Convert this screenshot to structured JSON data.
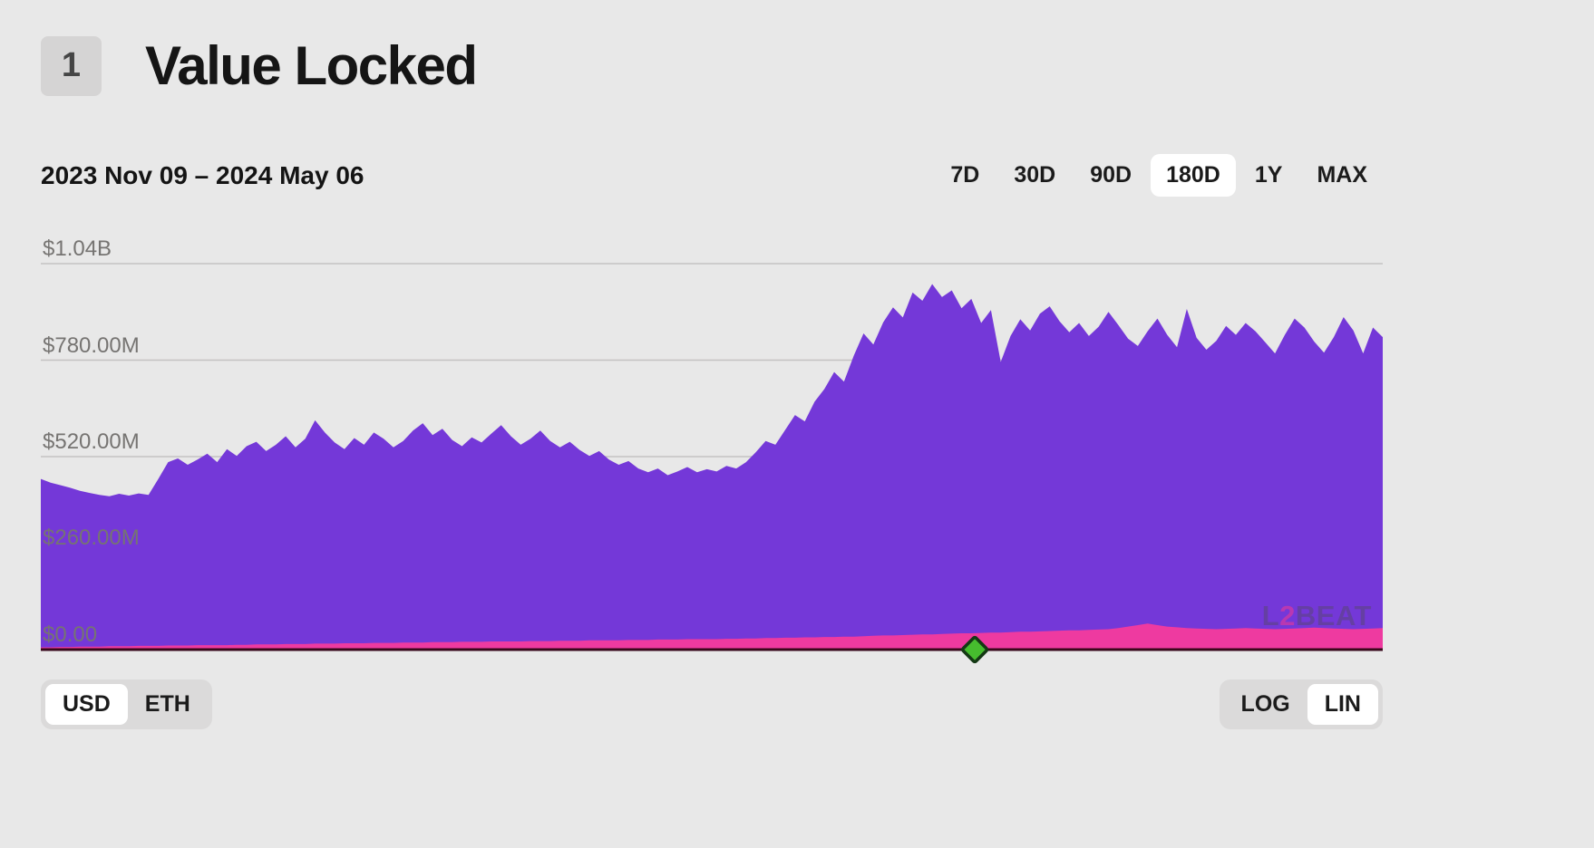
{
  "header": {
    "badge": "1",
    "title": "Value Locked"
  },
  "toolbar": {
    "date_range": "2023 Nov 09 – 2024 May 06",
    "timerange_options": [
      "7D",
      "30D",
      "90D",
      "180D",
      "1Y",
      "MAX"
    ],
    "timerange_selected": "180D"
  },
  "chart_data": {
    "type": "area",
    "title": "Value Locked",
    "x_start": "2023 Nov 09",
    "x_end": "2024 May 06",
    "y_labels": [
      "$1.04B",
      "$780.00M",
      "$520.00M",
      "$260.00M",
      "$0.00"
    ],
    "y_gridlines_musd": [
      1040,
      780,
      520,
      260,
      0
    ],
    "ylim_musd": [
      0,
      1040
    ],
    "grid": true,
    "legend": "none",
    "series": [
      {
        "name": "total_value_locked_usd_millions",
        "color": "#7438d8",
        "values": [
          460,
          450,
          443,
          436,
          428,
          422,
          417,
          413,
          420,
          415,
          421,
          417,
          460,
          505,
          515,
          498,
          512,
          528,
          505,
          540,
          522,
          548,
          560,
          535,
          552,
          575,
          545,
          568,
          618,
          585,
          558,
          540,
          570,
          552,
          585,
          568,
          545,
          562,
          590,
          610,
          578,
          595,
          565,
          548,
          572,
          558,
          582,
          605,
          575,
          552,
          568,
          590,
          562,
          545,
          560,
          538,
          522,
          535,
          512,
          498,
          508,
          488,
          478,
          488,
          470,
          480,
          492,
          478,
          486,
          480,
          495,
          488,
          505,
          532,
          562,
          552,
          592,
          632,
          615,
          668,
          702,
          748,
          722,
          792,
          852,
          822,
          882,
          922,
          895,
          962,
          940,
          985,
          950,
          968,
          920,
          945,
          880,
          915,
          775,
          845,
          890,
          860,
          905,
          925,
          885,
          855,
          880,
          845,
          870,
          910,
          875,
          838,
          818,
          858,
          892,
          848,
          815,
          918,
          840,
          808,
          832,
          872,
          848,
          880,
          858,
          828,
          798,
          848,
          892,
          868,
          830,
          800,
          842,
          896,
          860,
          798,
          868,
          842
        ]
      },
      {
        "name": "bottom_band_usd_millions",
        "color": "#ee3aa0",
        "values": [
          6,
          6,
          7,
          7,
          8,
          8,
          8,
          9,
          9,
          9,
          10,
          10,
          10,
          11,
          11,
          11,
          12,
          12,
          12,
          12,
          13,
          13,
          14,
          14,
          14,
          15,
          15,
          15,
          16,
          16,
          16,
          17,
          17,
          17,
          18,
          18,
          18,
          19,
          19,
          19,
          20,
          20,
          20,
          21,
          21,
          21,
          22,
          22,
          22,
          22,
          23,
          23,
          23,
          24,
          24,
          24,
          25,
          25,
          25,
          25,
          26,
          26,
          26,
          27,
          27,
          27,
          28,
          28,
          28,
          28,
          29,
          29,
          30,
          30,
          31,
          31,
          32,
          32,
          33,
          33,
          34,
          34,
          35,
          35,
          36,
          37,
          38,
          38,
          39,
          40,
          41,
          41,
          42,
          43,
          44,
          44,
          45,
          46,
          46,
          47,
          48,
          48,
          49,
          50,
          51,
          52,
          52,
          53,
          54,
          55,
          58,
          62,
          66,
          70,
          66,
          62,
          60,
          58,
          57,
          56,
          55,
          56,
          57,
          58,
          57,
          56,
          55,
          56,
          57,
          58,
          59,
          58,
          57,
          56,
          55,
          56,
          57,
          58
        ]
      }
    ],
    "baseline_color": "#38081b",
    "milestone": {
      "shape": "diamond",
      "color": "#46bd2e",
      "border": "#143814",
      "position_pct": 69.6
    },
    "watermark": {
      "prefix": "L",
      "accent": "2",
      "suffix": "BEAT"
    }
  },
  "footer": {
    "unit_options": [
      "USD",
      "ETH"
    ],
    "unit_selected": "USD",
    "scale_options": [
      "LOG",
      "LIN"
    ],
    "scale_selected": "LIN"
  }
}
